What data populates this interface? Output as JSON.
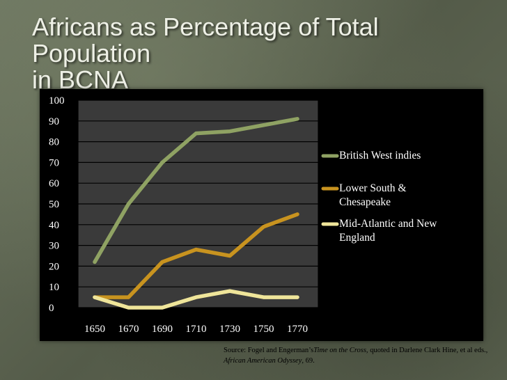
{
  "title_line1": "Africans as Percentage of Total Population",
  "title_line2": "in BCNA",
  "source": {
    "prefix": "Source: Fogel and Engerman’s",
    "book1": "Time on the Cross,",
    "middle": " quoted in Darlene Clark Hine, et al eds., ",
    "book2": "African American Odyssey",
    "suffix": ", 69."
  },
  "chart_data": {
    "type": "line",
    "title": "Africans as Percentage of Total Population in BCNA",
    "xlabel": "",
    "ylabel": "",
    "ylim": [
      0,
      100
    ],
    "yticks": [
      0,
      10,
      20,
      30,
      40,
      50,
      60,
      70,
      80,
      90,
      100
    ],
    "x": [
      "1650",
      "1670",
      "1690",
      "1710",
      "1730",
      "1750",
      "1770"
    ],
    "grid": true,
    "legend_position": "right",
    "series": [
      {
        "name": "British West indies",
        "color": "#8fa263",
        "values": [
          22,
          50,
          70,
          84,
          85,
          88,
          91
        ]
      },
      {
        "name": "Lower South & Chesapeake",
        "color": "#c8931f",
        "values": [
          5,
          5,
          22,
          28,
          25,
          39,
          45
        ]
      },
      {
        "name": "Mid-Atlantic and New England",
        "color": "#efe59a",
        "values": [
          5,
          0,
          0,
          5,
          8,
          5,
          5
        ]
      }
    ],
    "legend_lines": [
      [
        "British West indies"
      ],
      [
        "Lower South &",
        "Chesapeake"
      ],
      [
        "Mid-Atlantic and New",
        "England"
      ]
    ]
  }
}
